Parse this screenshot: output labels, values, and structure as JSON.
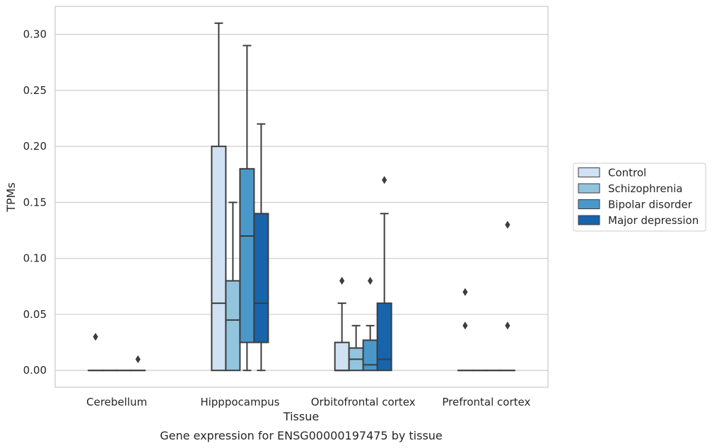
{
  "chart_data": {
    "type": "box",
    "title": "",
    "caption": "Gene expression for ENSG00000197475 by tissue",
    "xlabel": "Tissue",
    "ylabel": "TPMs",
    "ylim": [
      -0.015,
      0.325
    ],
    "yticks": [
      0.0,
      0.05,
      0.1,
      0.15,
      0.2,
      0.25,
      0.3
    ],
    "ytick_labels": [
      "0.00",
      "0.05",
      "0.10",
      "0.15",
      "0.20",
      "0.25",
      "0.30"
    ],
    "grid": true,
    "legend_position": "right",
    "categories": [
      "Cerebellum",
      "Hipppocampus",
      "Orbitofrontal cortex",
      "Prefrontal cortex"
    ],
    "series": [
      {
        "name": "Control",
        "color": "#cfe1f2",
        "boxes": [
          {
            "whislo": 0.0,
            "q1": 0.0,
            "med": 0.0,
            "q3": 0.0,
            "whishi": 0.0,
            "fliers": [
              0.03
            ]
          },
          {
            "whislo": 0.0,
            "q1": 0.0,
            "med": 0.06,
            "q3": 0.2,
            "whishi": 0.31,
            "fliers": []
          },
          {
            "whislo": 0.0,
            "q1": 0.0,
            "med": 0.0,
            "q3": 0.025,
            "whishi": 0.06,
            "fliers": [
              0.08
            ]
          },
          {
            "whislo": 0.0,
            "q1": 0.0,
            "med": 0.0,
            "q3": 0.0,
            "whishi": 0.0,
            "fliers": [
              0.04,
              0.07
            ]
          }
        ]
      },
      {
        "name": "Schizophrenia",
        "color": "#93c4de",
        "boxes": [
          {
            "whislo": 0.0,
            "q1": 0.0,
            "med": 0.0,
            "q3": 0.0,
            "whishi": 0.0,
            "fliers": []
          },
          {
            "whislo": 0.0,
            "q1": 0.0,
            "med": 0.045,
            "q3": 0.08,
            "whishi": 0.15,
            "fliers": []
          },
          {
            "whislo": 0.0,
            "q1": 0.0,
            "med": 0.01,
            "q3": 0.02,
            "whishi": 0.04,
            "fliers": []
          },
          {
            "whislo": 0.0,
            "q1": 0.0,
            "med": 0.0,
            "q3": 0.0,
            "whishi": 0.0,
            "fliers": []
          }
        ]
      },
      {
        "name": "Bipolar disorder",
        "color": "#4a98c9",
        "boxes": [
          {
            "whislo": 0.0,
            "q1": 0.0,
            "med": 0.0,
            "q3": 0.0,
            "whishi": 0.0,
            "fliers": []
          },
          {
            "whislo": 0.0,
            "q1": 0.025,
            "med": 0.12,
            "q3": 0.18,
            "whishi": 0.29,
            "fliers": []
          },
          {
            "whislo": 0.0,
            "q1": 0.0,
            "med": 0.005,
            "q3": 0.027,
            "whishi": 0.04,
            "fliers": [
              0.08
            ]
          },
          {
            "whislo": 0.0,
            "q1": 0.0,
            "med": 0.0,
            "q3": 0.0,
            "whishi": 0.0,
            "fliers": []
          }
        ]
      },
      {
        "name": "Major depression",
        "color": "#1764ab",
        "boxes": [
          {
            "whislo": 0.0,
            "q1": 0.0,
            "med": 0.0,
            "q3": 0.0,
            "whishi": 0.0,
            "fliers": [
              0.01
            ]
          },
          {
            "whislo": 0.0,
            "q1": 0.025,
            "med": 0.06,
            "q3": 0.14,
            "whishi": 0.22,
            "fliers": []
          },
          {
            "whislo": 0.0,
            "q1": 0.0,
            "med": 0.01,
            "q3": 0.06,
            "whishi": 0.14,
            "fliers": [
              0.17
            ]
          },
          {
            "whislo": 0.0,
            "q1": 0.0,
            "med": 0.0,
            "q3": 0.0,
            "whishi": 0.0,
            "fliers": [
              0.04,
              0.13
            ]
          }
        ]
      }
    ],
    "colors": {
      "grid": "#cccccc",
      "frame": "#cccccc",
      "line": "#3d3d3d",
      "text": "#262626"
    }
  }
}
